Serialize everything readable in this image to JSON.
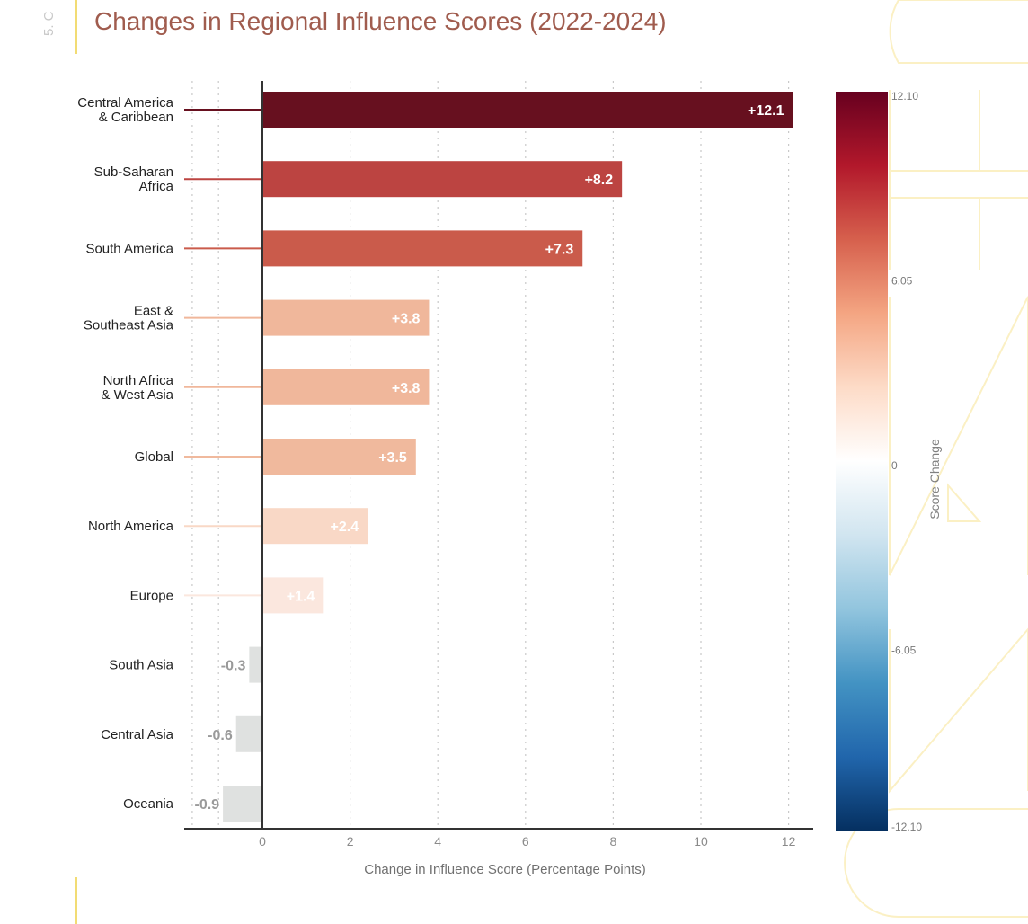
{
  "page": {
    "section_label": "5. C",
    "title": "Changes in Regional Influence Scores (2022-2024)"
  },
  "chart_data": {
    "type": "bar",
    "orientation": "horizontal",
    "title": "Changes in Regional Influence Scores (2022-2024)",
    "xlabel": "Change in Influence Score (Percentage Points)",
    "ylabel": "",
    "xlim": [
      -1.8,
      12.6
    ],
    "xticks": [
      0,
      2,
      4,
      6,
      8,
      10,
      12
    ],
    "grid": "vertical dotted",
    "categories": [
      {
        "name": "Central America & Caribbean",
        "lines": [
          "Central America",
          "& Caribbean"
        ],
        "value": 12.1,
        "label": "+12.1",
        "color": "#67101f"
      },
      {
        "name": "Sub-Saharan Africa",
        "lines": [
          "Sub-Saharan",
          "Africa"
        ],
        "value": 8.2,
        "label": "+8.2",
        "color": "#bc4441"
      },
      {
        "name": "South America",
        "lines": [
          "South America"
        ],
        "value": 7.3,
        "label": "+7.3",
        "color": "#ca5b4b"
      },
      {
        "name": "East & Southeast Asia",
        "lines": [
          "East &",
          "Southeast Asia"
        ],
        "value": 3.8,
        "label": "+3.8",
        "color": "#f0b79b"
      },
      {
        "name": "North Africa & West Asia",
        "lines": [
          "North Africa",
          "& West Asia"
        ],
        "value": 3.8,
        "label": "+3.8",
        "color": "#f0b79b"
      },
      {
        "name": "Global",
        "lines": [
          "Global"
        ],
        "value": 3.5,
        "label": "+3.5",
        "color": "#f0b99d"
      },
      {
        "name": "North America",
        "lines": [
          "North America"
        ],
        "value": 2.4,
        "label": "+2.4",
        "color": "#f9d8c6"
      },
      {
        "name": "Europe",
        "lines": [
          "Europe"
        ],
        "value": 1.4,
        "label": "+1.4",
        "color": "#fbe7de"
      },
      {
        "name": "South Asia",
        "lines": [
          "South Asia"
        ],
        "value": -0.3,
        "label": "-0.3",
        "color": "#dfe1e0"
      },
      {
        "name": "Central Asia",
        "lines": [
          "Central Asia"
        ],
        "value": -0.6,
        "label": "-0.6",
        "color": "#dfe1e0"
      },
      {
        "name": "Oceania",
        "lines": [
          "Oceania"
        ],
        "value": -0.9,
        "label": "-0.9",
        "color": "#dfe1e0"
      }
    ],
    "colorbar": {
      "title": "Score Change",
      "range": [
        -12.1,
        12.1
      ],
      "ticks": [
        "12.10",
        "6.05",
        "0",
        "-6.05",
        "-12.10"
      ],
      "colors": [
        "#67001f",
        "#b2182b",
        "#d6604d",
        "#f4a582",
        "#fddbc7",
        "#ffffff",
        "#d1e5f0",
        "#92c5de",
        "#4393c3",
        "#2166ac",
        "#053061"
      ]
    }
  }
}
